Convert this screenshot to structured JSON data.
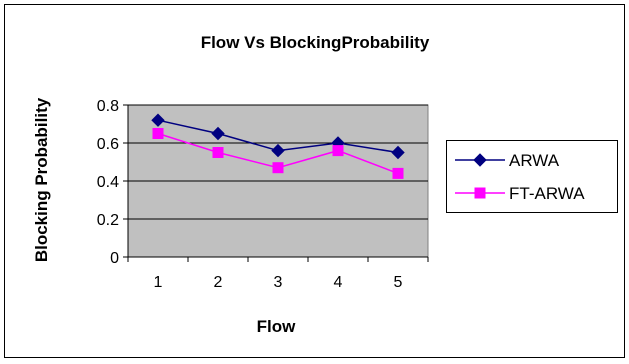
{
  "chart_data": {
    "type": "line",
    "title": "Flow Vs BlockingProbability",
    "xlabel": "Flow",
    "ylabel": "Blocking Probability",
    "categories": [
      "1",
      "2",
      "3",
      "4",
      "5"
    ],
    "ylim": [
      0,
      0.8
    ],
    "yticks": [
      "0",
      "0.2",
      "0.4",
      "0.6",
      "0.8"
    ],
    "grid": true,
    "legend_position": "right",
    "series": [
      {
        "name": "ARWA",
        "values": [
          0.72,
          0.65,
          0.56,
          0.6,
          0.55
        ],
        "color": "#000080",
        "marker": "diamond"
      },
      {
        "name": "FT-ARWA",
        "values": [
          0.65,
          0.55,
          0.47,
          0.56,
          0.44
        ],
        "color": "#FF00FF",
        "marker": "square"
      }
    ],
    "plot_background": "#C0C0C0"
  }
}
